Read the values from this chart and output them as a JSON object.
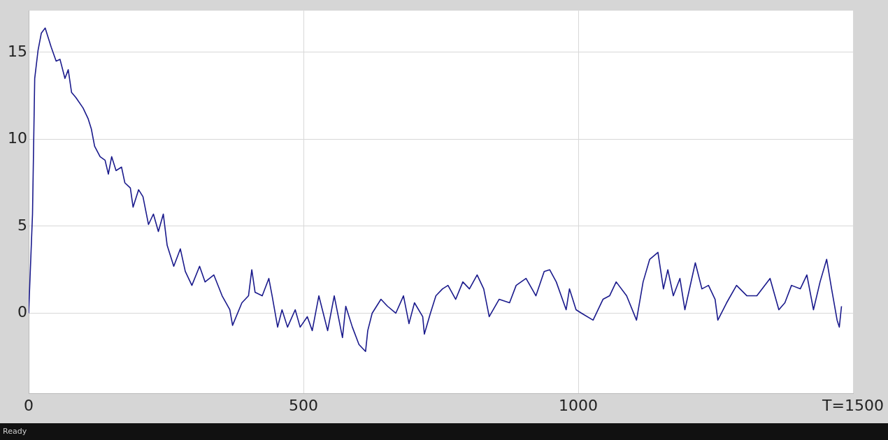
{
  "chart_data": {
    "type": "line",
    "x": [
      0,
      7,
      11,
      17,
      23,
      30,
      35,
      41,
      50,
      57,
      66,
      72,
      78,
      86,
      99,
      108,
      114,
      120,
      130,
      139,
      145,
      151,
      159,
      169,
      175,
      185,
      190,
      200,
      208,
      218,
      227,
      236,
      245,
      252,
      264,
      276,
      285,
      297,
      311,
      321,
      337,
      352,
      366,
      371,
      388,
      400,
      406,
      412,
      425,
      437,
      443,
      453,
      461,
      471,
      485,
      494,
      507,
      516,
      528,
      544,
      556,
      571,
      577,
      589,
      601,
      613,
      617,
      625,
      641,
      653,
      668,
      682,
      692,
      702,
      717,
      720,
      731,
      741,
      753,
      763,
      777,
      790,
      802,
      816,
      828,
      838,
      856,
      875,
      887,
      905,
      923,
      938,
      948,
      960,
      978,
      984,
      996,
      1006,
      1027,
      1045,
      1057,
      1069,
      1088,
      1106,
      1118,
      1130,
      1145,
      1155,
      1163,
      1173,
      1185,
      1194,
      1213,
      1225,
      1237,
      1249,
      1254,
      1270,
      1288,
      1307,
      1325,
      1349,
      1365,
      1376,
      1388,
      1404,
      1416,
      1428,
      1440,
      1452,
      1461,
      1471,
      1475,
      1479
    ],
    "series": [
      {
        "color": "#1a1a8c",
        "values": [
          0,
          5.7,
          13.5,
          15.1,
          16.1,
          16.4,
          15.9,
          15.3,
          14.5,
          14.6,
          13.5,
          14.0,
          12.7,
          12.4,
          11.8,
          11.2,
          10.6,
          9.6,
          9.0,
          8.8,
          8.0,
          9.0,
          8.2,
          8.4,
          7.5,
          7.2,
          6.1,
          7.1,
          6.7,
          5.1,
          5.7,
          4.7,
          5.7,
          3.9,
          2.7,
          3.7,
          2.4,
          1.6,
          2.7,
          1.8,
          2.2,
          1.0,
          0.2,
          -0.7,
          0.6,
          1.0,
          2.5,
          1.2,
          1.0,
          2.0,
          1.0,
          -0.8,
          0.2,
          -0.8,
          0.2,
          -0.8,
          -0.2,
          -1.0,
          1.0,
          -1.0,
          1.0,
          -1.4,
          0.4,
          -0.8,
          -1.8,
          -2.2,
          -1.0,
          0,
          0.8,
          0.4,
          0,
          1.0,
          -0.6,
          0.6,
          -0.2,
          -1.2,
          0,
          1.0,
          1.4,
          1.6,
          0.8,
          1.8,
          1.4,
          2.2,
          1.4,
          -0.2,
          0.8,
          0.6,
          1.6,
          2.0,
          1.0,
          2.4,
          2.5,
          1.8,
          0.2,
          1.4,
          0.2,
          0,
          -0.4,
          0.8,
          1.0,
          1.8,
          1.0,
          -0.4,
          1.8,
          3.1,
          3.5,
          1.4,
          2.5,
          1.0,
          2.0,
          0.2,
          2.9,
          1.4,
          1.6,
          0.8,
          -0.4,
          0.6,
          1.6,
          1.0,
          1.0,
          2.0,
          0.2,
          0.6,
          1.6,
          1.4,
          2.2,
          0.2,
          1.8,
          3.1,
          1.4,
          -0.4,
          -0.8,
          0.4
        ]
      }
    ],
    "xlim": [
      0,
      1500
    ],
    "xticks": [
      0,
      500,
      1000,
      {
        "value": 1500,
        "label": "T=1500"
      }
    ],
    "ylim": [
      -4.6,
      17.4
    ],
    "yticks": [
      0,
      5,
      10,
      15
    ],
    "grid": true,
    "legend": false,
    "marker": "none",
    "line_style": "solid",
    "annotations": [
      "Ready"
    ]
  }
}
